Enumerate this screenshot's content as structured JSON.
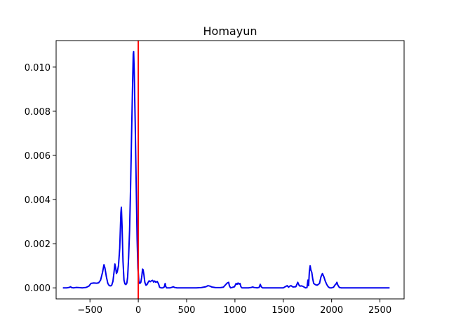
{
  "chart_data": {
    "type": "line",
    "title": "Homayun",
    "xlabel": "",
    "ylabel": "",
    "xlim": [
      -850,
      2750
    ],
    "ylim": [
      -0.0005,
      0.0112
    ],
    "grid": false,
    "legend": "none",
    "x_ticks": [
      -500,
      0,
      500,
      1000,
      1500,
      2000,
      2500
    ],
    "x_tick_labels": [
      "−500",
      "0",
      "500",
      "1000",
      "1500",
      "2000",
      "2500"
    ],
    "y_ticks": [
      0.0,
      0.002,
      0.004,
      0.006,
      0.008,
      0.01
    ],
    "y_tick_labels": [
      "0.000",
      "0.002",
      "0.004",
      "0.006",
      "0.008",
      "0.010"
    ],
    "vline": {
      "x": 0,
      "color": "#ff0000"
    },
    "series": [
      {
        "color": "#0000ee",
        "points": [
          [
            -780,
            0.0
          ],
          [
            -740,
            0.0
          ],
          [
            -715,
            2e-05
          ],
          [
            -700,
            5e-05
          ],
          [
            -690,
            1e-05
          ],
          [
            -670,
            0.0
          ],
          [
            -640,
            2e-05
          ],
          [
            -610,
            1e-05
          ],
          [
            -580,
            0.0
          ],
          [
            -540,
            2e-05
          ],
          [
            -510,
            8e-05
          ],
          [
            -490,
            0.0002
          ],
          [
            -460,
            0.00022
          ],
          [
            -430,
            0.00021
          ],
          [
            -410,
            0.00023
          ],
          [
            -390,
            0.00035
          ],
          [
            -370,
            0.0007
          ],
          [
            -355,
            0.00105
          ],
          [
            -345,
            0.0009
          ],
          [
            -330,
            0.0005
          ],
          [
            -315,
            0.0002
          ],
          [
            -300,
            0.0001
          ],
          [
            -285,
            9e-05
          ],
          [
            -275,
            0.00012
          ],
          [
            -262,
            0.0003
          ],
          [
            -250,
            0.00075
          ],
          [
            -242,
            0.00108
          ],
          [
            -234,
            0.0009
          ],
          [
            -226,
            0.00065
          ],
          [
            -218,
            0.00072
          ],
          [
            -205,
            0.001
          ],
          [
            -192,
            0.0018
          ],
          [
            -180,
            0.0034
          ],
          [
            -175,
            0.00365
          ],
          [
            -168,
            0.0028
          ],
          [
            -158,
            0.0012
          ],
          [
            -148,
            0.00035
          ],
          [
            -138,
            0.00018
          ],
          [
            -128,
            0.00015
          ],
          [
            -118,
            0.00022
          ],
          [
            -110,
            0.0005
          ],
          [
            -100,
            0.0014
          ],
          [
            -90,
            0.0026
          ],
          [
            -80,
            0.0045
          ],
          [
            -70,
            0.0068
          ],
          [
            -60,
            0.009
          ],
          [
            -52,
            0.0106
          ],
          [
            -48,
            0.0107
          ],
          [
            -42,
            0.0098
          ],
          [
            -32,
            0.0075
          ],
          [
            -22,
            0.0048
          ],
          [
            -12,
            0.0022
          ],
          [
            -4,
            0.0009
          ],
          [
            6,
            0.0003
          ],
          [
            16,
            0.0002
          ],
          [
            26,
            0.00025
          ],
          [
            36,
            0.0005
          ],
          [
            44,
            0.00085
          ],
          [
            50,
            0.00082
          ],
          [
            58,
            0.0006
          ],
          [
            68,
            0.00025
          ],
          [
            80,
            0.00012
          ],
          [
            90,
            0.00015
          ],
          [
            102,
            0.00025
          ],
          [
            112,
            0.00032
          ],
          [
            124,
            0.00028
          ],
          [
            136,
            0.00032
          ],
          [
            148,
            0.00034
          ],
          [
            160,
            0.00026
          ],
          [
            170,
            0.00031
          ],
          [
            182,
            0.00025
          ],
          [
            196,
            0.00029
          ],
          [
            210,
            0.00018
          ],
          [
            220,
            3e-05
          ],
          [
            235,
            0.0
          ],
          [
            255,
            0.0
          ],
          [
            270,
            5e-05
          ],
          [
            278,
            0.0002
          ],
          [
            284,
            7e-05
          ],
          [
            292,
            0.0
          ],
          [
            330,
            0.0
          ],
          [
            350,
            3e-05
          ],
          [
            362,
            5e-05
          ],
          [
            375,
            2e-05
          ],
          [
            400,
            0.0
          ],
          [
            500,
            0.0
          ],
          [
            600,
            0.0
          ],
          [
            650,
            1e-05
          ],
          [
            700,
            5e-05
          ],
          [
            720,
            0.0001
          ],
          [
            740,
            8e-05
          ],
          [
            760,
            4e-05
          ],
          [
            800,
            1e-05
          ],
          [
            850,
            1e-05
          ],
          [
            880,
            3e-05
          ],
          [
            905,
            0.00015
          ],
          [
            920,
            0.00022
          ],
          [
            935,
            0.00025
          ],
          [
            942,
            0.0001
          ],
          [
            955,
            0.0
          ],
          [
            995,
            5e-05
          ],
          [
            1012,
            0.0002
          ],
          [
            1022,
            0.00016
          ],
          [
            1032,
            0.00022
          ],
          [
            1042,
            0.00017
          ],
          [
            1052,
            0.0002
          ],
          [
            1062,
            5e-05
          ],
          [
            1072,
            0.0
          ],
          [
            1140,
            0.0
          ],
          [
            1170,
            2e-05
          ],
          [
            1185,
            4e-05
          ],
          [
            1195,
            2e-05
          ],
          [
            1230,
            0.0
          ],
          [
            1250,
            2e-05
          ],
          [
            1262,
            0.00016
          ],
          [
            1272,
            5e-05
          ],
          [
            1285,
            0.0
          ],
          [
            1400,
            0.0
          ],
          [
            1500,
            0.0
          ],
          [
            1520,
            5e-05
          ],
          [
            1540,
            0.0001
          ],
          [
            1555,
            3e-05
          ],
          [
            1565,
            7e-05
          ],
          [
            1580,
            0.0001
          ],
          [
            1600,
            4e-05
          ],
          [
            1630,
            5e-05
          ],
          [
            1650,
            0.00025
          ],
          [
            1662,
            0.00013
          ],
          [
            1672,
            8e-05
          ],
          [
            1690,
            9e-05
          ],
          [
            1710,
            5e-05
          ],
          [
            1730,
            0.0
          ],
          [
            1745,
            1e-05
          ],
          [
            1755,
            0.00035
          ],
          [
            1762,
            0.0001
          ],
          [
            1770,
            0.00075
          ],
          [
            1778,
            0.001
          ],
          [
            1786,
            0.0008
          ],
          [
            1795,
            0.0007
          ],
          [
            1805,
            0.0004
          ],
          [
            1815,
            0.0002
          ],
          [
            1830,
            0.00015
          ],
          [
            1850,
            0.00012
          ],
          [
            1860,
            0.00015
          ],
          [
            1875,
            0.0002
          ],
          [
            1890,
            0.0005
          ],
          [
            1905,
            0.00065
          ],
          [
            1920,
            0.0005
          ],
          [
            1935,
            0.0003
          ],
          [
            1950,
            0.00015
          ],
          [
            1965,
            5e-05
          ],
          [
            1980,
            0.0
          ],
          [
            2000,
            0.0
          ],
          [
            2020,
            3e-05
          ],
          [
            2035,
            0.00013
          ],
          [
            2045,
            0.00017
          ],
          [
            2055,
            0.00025
          ],
          [
            2065,
            0.00012
          ],
          [
            2080,
            2e-05
          ],
          [
            2100,
            0.0
          ],
          [
            2150,
            0.0
          ],
          [
            2200,
            0.0
          ],
          [
            2250,
            0.0
          ],
          [
            2300,
            0.0
          ],
          [
            2350,
            0.0
          ],
          [
            2400,
            0.0
          ],
          [
            2450,
            0.0
          ],
          [
            2500,
            0.0
          ],
          [
            2550,
            0.0
          ],
          [
            2600,
            0.0
          ]
        ]
      }
    ]
  }
}
